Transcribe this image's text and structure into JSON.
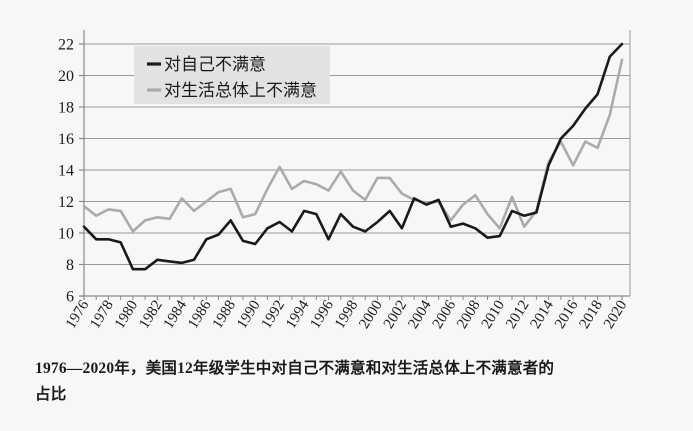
{
  "page": {
    "background": "#f7f7f7",
    "plot_background": "#f7f7f7"
  },
  "caption": {
    "line1": "1976—2020年，美国12年级学生中对自己不满意和对生活总体上不满意者的",
    "line2": "占比"
  },
  "chart_data": {
    "type": "line",
    "title": "",
    "xlabel": "",
    "ylabel": "",
    "x": [
      1976,
      1977,
      1978,
      1979,
      1980,
      1981,
      1982,
      1983,
      1984,
      1985,
      1986,
      1987,
      1988,
      1989,
      1990,
      1991,
      1992,
      1993,
      1994,
      1995,
      1996,
      1997,
      1998,
      1999,
      2000,
      2001,
      2002,
      2003,
      2004,
      2005,
      2006,
      2007,
      2008,
      2009,
      2010,
      2011,
      2012,
      2013,
      2014,
      2015,
      2016,
      2017,
      2018,
      2019,
      2020
    ],
    "series": [
      {
        "name": "对自己不满意",
        "color": "#1a1a1a",
        "values": [
          10.4,
          9.6,
          9.6,
          9.4,
          7.7,
          7.7,
          8.3,
          8.2,
          8.1,
          8.3,
          9.6,
          9.9,
          10.8,
          9.5,
          9.3,
          10.3,
          10.7,
          10.1,
          11.4,
          11.2,
          9.6,
          11.2,
          10.4,
          10.1,
          10.7,
          11.4,
          10.3,
          12.2,
          11.8,
          12.1,
          10.4,
          10.6,
          10.3,
          9.7,
          9.8,
          11.4,
          11.1,
          11.3,
          14.3,
          16.0,
          16.8,
          17.9,
          18.8,
          21.2,
          22.0
        ]
      },
      {
        "name": "对生活总体上不满意",
        "color": "#ababab",
        "values": [
          11.7,
          11.1,
          11.5,
          11.4,
          10.1,
          10.8,
          11.0,
          10.9,
          12.2,
          11.4,
          12.0,
          12.6,
          12.8,
          11.0,
          11.2,
          12.8,
          14.2,
          12.8,
          13.3,
          13.1,
          12.7,
          13.9,
          12.7,
          12.1,
          13.5,
          13.5,
          12.5,
          12.1,
          11.9,
          12.0,
          10.8,
          11.8,
          12.4,
          11.2,
          10.3,
          12.3,
          10.4,
          11.4,
          14.5,
          15.8,
          14.3,
          15.8,
          15.4,
          17.5,
          21.0
        ]
      }
    ],
    "ylim": [
      6,
      22
    ],
    "ytick_step": 2,
    "ytick_labels": [
      "6",
      "8",
      "10",
      "12",
      "14",
      "16",
      "18",
      "20",
      "22"
    ],
    "xtick_label_step": 2,
    "xtick_minor_every_year": true,
    "grid": true,
    "legend_position": "top-left",
    "style": {
      "grid_color": "#9a9a9a",
      "axis_color": "#8a8a8a",
      "tick_label_color": "#1a1a1a",
      "legend_background": "#e2e2e2",
      "line_width": 2.6
    }
  }
}
